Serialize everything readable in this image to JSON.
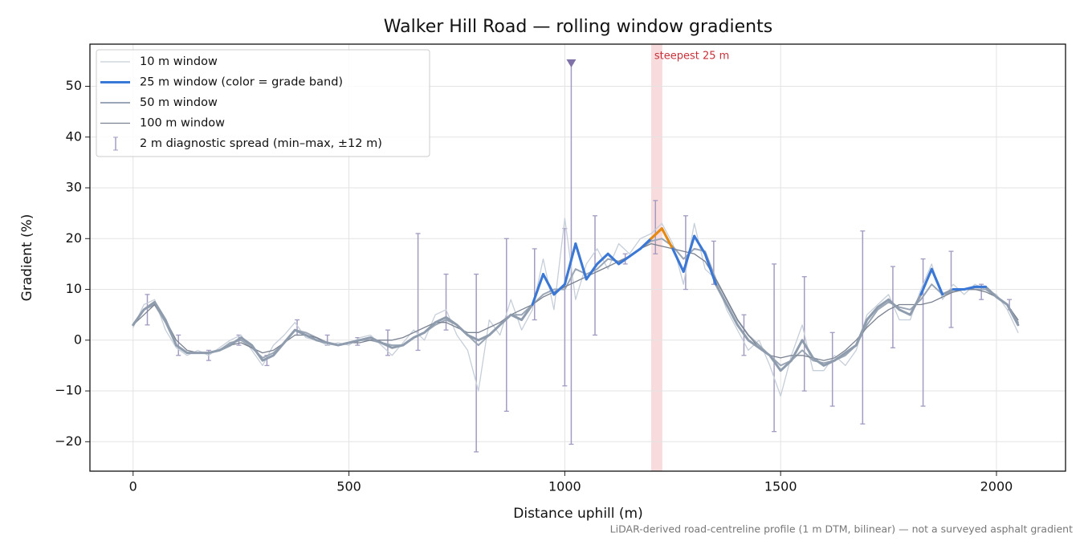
{
  "chart_data": {
    "type": "line",
    "title": "Walker Hill Road — rolling window gradients",
    "x_label": "Distance uphill (m)",
    "y_label": "Gradient (%)",
    "footnote": "LiDAR-derived road-centreline profile (1 m DTM, bilinear) — not a surveyed asphalt gradient",
    "xlim": [
      -100,
      2160
    ],
    "ylim": [
      -25.8,
      58.3
    ],
    "xticks": [
      0,
      500,
      1000,
      1500,
      2000
    ],
    "yticks": [
      {
        "value": -20,
        "label": "−20"
      },
      {
        "value": -10,
        "label": "−10"
      },
      0,
      10,
      20,
      30,
      40,
      50
    ],
    "grid": true,
    "legend": "upper left",
    "x": [
      0,
      25,
      50,
      75,
      100,
      125,
      150,
      175,
      200,
      225,
      250,
      275,
      300,
      325,
      350,
      375,
      400,
      425,
      450,
      475,
      500,
      525,
      550,
      575,
      600,
      625,
      650,
      675,
      700,
      725,
      750,
      775,
      800,
      825,
      850,
      875,
      900,
      925,
      950,
      975,
      1000,
      1025,
      1050,
      1075,
      1100,
      1125,
      1150,
      1175,
      1200,
      1225,
      1250,
      1275,
      1300,
      1325,
      1350,
      1375,
      1400,
      1425,
      1450,
      1475,
      1500,
      1525,
      1550,
      1575,
      1600,
      1625,
      1650,
      1675,
      1700,
      1725,
      1750,
      1775,
      1800,
      1825,
      1850,
      1875,
      1900,
      1925,
      1950,
      1975,
      2000,
      2025,
      2050
    ],
    "series": [
      {
        "name": "10 m window",
        "color": "#c6cfd9",
        "width": 1.3,
        "values": [
          2.5,
          7,
          8,
          2,
          -1.5,
          -3,
          -2,
          -3,
          -1.5,
          0,
          1,
          -2,
          -5,
          -1,
          1,
          3.5,
          0.5,
          0,
          -1,
          -0.5,
          -1,
          0.5,
          1,
          -1,
          -3,
          -0.5,
          2,
          0,
          5,
          6,
          1,
          -2,
          -10,
          4,
          1,
          8,
          2,
          6,
          16,
          6,
          24,
          8,
          15,
          18,
          14,
          19,
          17,
          20,
          21,
          23,
          19,
          11,
          23,
          14,
          12,
          6,
          2,
          -2,
          0,
          -5,
          -11,
          -3,
          3,
          -6,
          -6,
          -3,
          -5,
          -2,
          5,
          7,
          9,
          4,
          4,
          10,
          15,
          8,
          11,
          9,
          11,
          10,
          9,
          6,
          1.5
        ]
      },
      {
        "name": "25 m window (color = grade band)",
        "color": "#3a78d8",
        "base_color": "#8e9cae",
        "width": 3,
        "grade_bands": [
          {
            "min": 10,
            "color": "#3a78d8"
          },
          {
            "min": 20,
            "color": "#e8890c"
          }
        ],
        "values": [
          3,
          6,
          7.5,
          4,
          -1,
          -2.5,
          -2.5,
          -2.5,
          -2,
          -1,
          0.5,
          -1,
          -4,
          -3,
          -0.5,
          2,
          1,
          0,
          -0.5,
          -1,
          -0.5,
          0,
          0.5,
          -0.5,
          -1.5,
          -1,
          0.5,
          1.5,
          3.5,
          4.5,
          3,
          1,
          0,
          1,
          3,
          5,
          4,
          7,
          13,
          9,
          11,
          19,
          12,
          15,
          17,
          15,
          16.5,
          18,
          20,
          22,
          18,
          13.5,
          20.5,
          17,
          11,
          7,
          3,
          0,
          -1.5,
          -3,
          -6,
          -4,
          0,
          -3.5,
          -5,
          -4,
          -2.5,
          -1,
          4,
          6.5,
          8,
          6,
          5,
          9,
          14,
          9,
          10,
          10,
          10.5,
          10.5,
          8.5,
          7,
          3
        ]
      },
      {
        "name": "50 m window",
        "color": "#9aa6b5",
        "width": 2,
        "values": [
          3,
          6,
          7,
          3.5,
          -1,
          -2.5,
          -2.5,
          -2.5,
          -2,
          -0.5,
          0,
          -1.5,
          -3.5,
          -2.5,
          -0.5,
          2,
          1.5,
          0.5,
          -0.5,
          -1,
          -0.5,
          0,
          0,
          -0.5,
          -1,
          -1,
          0.5,
          1.5,
          3,
          4,
          3,
          1,
          -1,
          1,
          3,
          5,
          5,
          7,
          9,
          10,
          10,
          14,
          13,
          14,
          16,
          15.5,
          16.5,
          18,
          19.5,
          20,
          18.5,
          16,
          18,
          17.5,
          12,
          8,
          4,
          1,
          -1,
          -3,
          -5,
          -4,
          -2,
          -4,
          -4.5,
          -4,
          -3,
          -1,
          3,
          6,
          7.5,
          6.5,
          6,
          8,
          11,
          9,
          9.5,
          10,
          10,
          10,
          8.5,
          7,
          3.5
        ]
      },
      {
        "name": "100 m window",
        "color": "#7a8290",
        "width": 1.3,
        "values": [
          3,
          5,
          7,
          4,
          0,
          -2,
          -2.5,
          -2.5,
          -2,
          -1,
          -0.5,
          -1.5,
          -2.5,
          -2,
          -0.5,
          1,
          1,
          0.5,
          -0.5,
          -1,
          -0.5,
          -0.5,
          0,
          0,
          0,
          0.5,
          1.5,
          2.5,
          3.5,
          3.5,
          2.5,
          1.5,
          1.5,
          2.5,
          3.5,
          5,
          6,
          7,
          8.5,
          9.5,
          10.5,
          11.5,
          12.5,
          13.5,
          14.5,
          15.5,
          16.5,
          18,
          19,
          18.5,
          18,
          17.5,
          17,
          15.5,
          12,
          8,
          4,
          1,
          -1.5,
          -3,
          -3.5,
          -3,
          -3,
          -3.5,
          -4,
          -3.5,
          -2,
          0,
          2.5,
          4.5,
          6,
          7,
          7,
          7,
          7.5,
          8.5,
          9.5,
          10,
          10,
          9.5,
          8.5,
          7,
          4
        ]
      }
    ],
    "spread": {
      "name": "2 m diagnostic spread (min–max, ±12 m)",
      "color": "#a39cc2",
      "x": [
        33,
        105,
        175,
        245,
        310,
        380,
        450,
        520,
        590,
        660,
        725,
        795,
        865,
        930,
        1000,
        1015,
        1070,
        1140,
        1210,
        1280,
        1345,
        1415,
        1485,
        1555,
        1620,
        1690,
        1760,
        1830,
        1895,
        1965,
        2030
      ],
      "low": [
        3,
        -3,
        -4,
        -1,
        -5,
        1,
        -1,
        -1,
        -3,
        -2,
        2,
        -22,
        -14,
        4,
        -9,
        -20.5,
        1,
        15,
        17,
        10,
        11,
        -3,
        -18,
        -10,
        -13,
        -16.5,
        -1.5,
        -13,
        2.5,
        8,
        6
      ],
      "high": [
        9,
        1,
        -2,
        1,
        -3,
        4,
        1,
        0.5,
        2,
        21,
        13,
        13,
        20,
        18,
        22,
        54.5,
        24.5,
        17,
        27.5,
        24.5,
        19.5,
        5,
        15,
        12.5,
        1.5,
        21.5,
        14.5,
        16,
        17.5,
        11,
        8
      ],
      "clipped_color": "#7f72a8"
    },
    "highlight": {
      "label": "steepest 25 m",
      "x": [
        1200,
        1226
      ],
      "color": "#f2b8bc",
      "text_color": "#c8303a"
    }
  }
}
